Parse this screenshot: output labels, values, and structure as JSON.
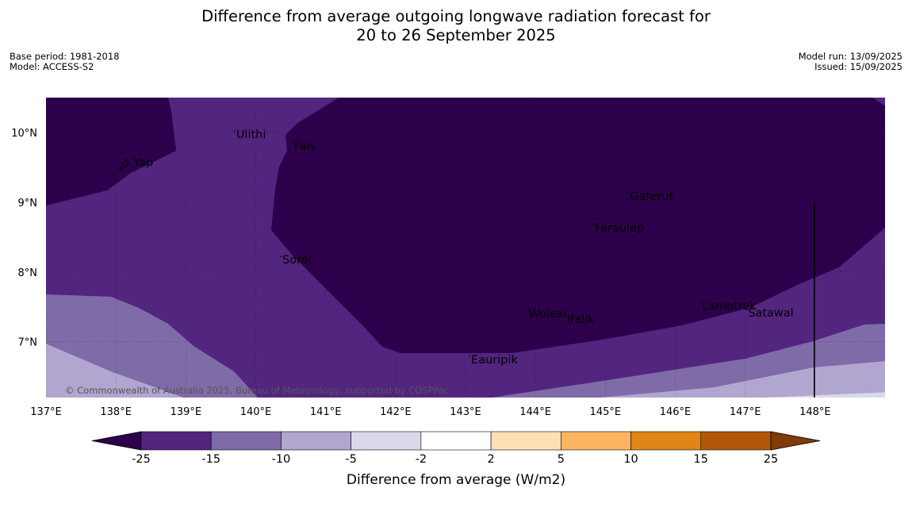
{
  "title": {
    "line1": "Difference from average outgoing longwave radiation forecast for",
    "line2": "20 to 26 September 2025"
  },
  "meta_left": {
    "base_period": "Base period: 1981-2018",
    "model": "Model: ACCESS-S2"
  },
  "meta_right": {
    "model_run": "Model run: 13/09/2025",
    "issued": "Issued: 15/09/2025"
  },
  "copyright": "© Commonwealth of Australia 2025, Bureau of Meteorology, supported by COSPPac",
  "map": {
    "lon_range": [
      137,
      149
    ],
    "lat_range": [
      6.2,
      10.5
    ],
    "lon_ticks": [
      {
        "value": 137,
        "label": "137°E"
      },
      {
        "value": 138,
        "label": "138°E"
      },
      {
        "value": 139,
        "label": "139°E"
      },
      {
        "value": 140,
        "label": "140°E"
      },
      {
        "value": 141,
        "label": "141°E"
      },
      {
        "value": 142,
        "label": "142°E"
      },
      {
        "value": 143,
        "label": "143°E"
      },
      {
        "value": 144,
        "label": "144°E"
      },
      {
        "value": 145,
        "label": "145°E"
      },
      {
        "value": 146,
        "label": "146°E"
      },
      {
        "value": 147,
        "label": "147°E"
      },
      {
        "value": 148,
        "label": "148°E"
      }
    ],
    "lat_ticks": [
      {
        "value": 10,
        "label": "10°N"
      },
      {
        "value": 9,
        "label": "9°N"
      },
      {
        "value": 8,
        "label": "8°N"
      },
      {
        "value": 7,
        "label": "7°N"
      }
    ],
    "places": [
      {
        "name": "Yap",
        "lon": 138.25,
        "lat": 9.52
      },
      {
        "name": "Ulithi",
        "lon": 139.72,
        "lat": 9.92
      },
      {
        "name": "Fais",
        "lon": 140.55,
        "lat": 9.75
      },
      {
        "name": "Gaferut",
        "lon": 145.35,
        "lat": 9.03
      },
      {
        "name": "Faraulep",
        "lon": 144.85,
        "lat": 8.58
      },
      {
        "name": "Sorol",
        "lon": 140.38,
        "lat": 8.12
      },
      {
        "name": "Woleai",
        "lon": 143.9,
        "lat": 7.35
      },
      {
        "name": "Ifalik",
        "lon": 144.45,
        "lat": 7.27
      },
      {
        "name": "Lamotrek",
        "lon": 146.38,
        "lat": 7.46
      },
      {
        "name": "Satawal",
        "lon": 147.04,
        "lat": 7.36
      },
      {
        "name": "Eauripik",
        "lon": 143.08,
        "lat": 6.69
      }
    ],
    "vertical_line_lon": 148
  },
  "colorbar": {
    "label": "Difference from average (W/m2)",
    "levels": [
      -25,
      -15,
      -10,
      -5,
      -2,
      2,
      5,
      10,
      15,
      25
    ],
    "tick_labels": [
      "-25",
      "-15",
      "-10",
      "-5",
      "-2",
      "2",
      "5",
      "10",
      "15",
      "25"
    ],
    "colors": [
      "#52257f",
      "#7f6ba8",
      "#b1a6d0",
      "#d9d9eb",
      "#ffffff",
      "#fde0b5",
      "#fbb55f",
      "#e08516",
      "#b15808"
    ],
    "extend_low_color": "#2d004b",
    "extend_high_color": "#7f3b08"
  },
  "fill_colors": {
    "lt_minus25": "#2d004b",
    "minus25_minus15": "#52257f",
    "minus15_minus10": "#7f6ba8",
    "minus10_minus5": "#b1a6d0",
    "minus5_minus2": "#d9d9eb"
  }
}
